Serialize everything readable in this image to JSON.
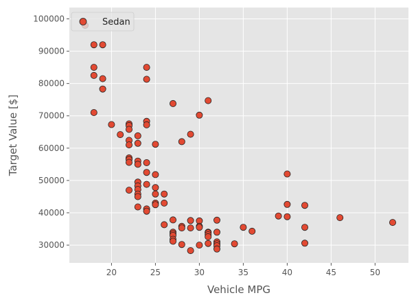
{
  "chart_data": {
    "type": "scatter",
    "xlabel": "Vehicle MPG",
    "ylabel": "Target Value [$]",
    "xlim": [
      15.2,
      53.8
    ],
    "ylim": [
      24500,
      103500
    ],
    "xticks": [
      20,
      25,
      30,
      35,
      40,
      45,
      50
    ],
    "yticks": [
      30000,
      40000,
      50000,
      60000,
      70000,
      80000,
      90000,
      100000
    ],
    "grid": true,
    "legend": {
      "placement": "top-left"
    },
    "colors": {
      "background": "#E5E5E5",
      "grid": "#FFFFFF",
      "marker_fill": "#E24A33",
      "marker_edge": "#222222",
      "text": "#555555"
    },
    "series": [
      {
        "name": "Sedan",
        "points": [
          [
            17,
            98000
          ],
          [
            18,
            92000
          ],
          [
            19,
            92000
          ],
          [
            18,
            85000
          ],
          [
            18,
            82500
          ],
          [
            19,
            81500
          ],
          [
            19,
            78300
          ],
          [
            18,
            71000
          ],
          [
            20,
            67300
          ],
          [
            21,
            64200
          ],
          [
            22,
            67500
          ],
          [
            22,
            67000
          ],
          [
            22,
            65800
          ],
          [
            22,
            62400
          ],
          [
            22,
            61000
          ],
          [
            22,
            57000
          ],
          [
            22,
            56500
          ],
          [
            22,
            55600
          ],
          [
            22,
            47000
          ],
          [
            23,
            63800
          ],
          [
            23,
            61500
          ],
          [
            23,
            56000
          ],
          [
            23,
            55000
          ],
          [
            23,
            49500
          ],
          [
            23,
            48300
          ],
          [
            23,
            47200
          ],
          [
            23,
            45800
          ],
          [
            23,
            45000
          ],
          [
            23,
            41800
          ],
          [
            24,
            85000
          ],
          [
            24,
            81300
          ],
          [
            24,
            68300
          ],
          [
            24,
            67200
          ],
          [
            24,
            55500
          ],
          [
            24,
            52500
          ],
          [
            24,
            48800
          ],
          [
            24,
            41200
          ],
          [
            24,
            40500
          ],
          [
            25,
            61200
          ],
          [
            25,
            51800
          ],
          [
            25,
            47800
          ],
          [
            25,
            45800
          ],
          [
            25,
            43000
          ],
          [
            25,
            42500
          ],
          [
            26,
            45800
          ],
          [
            26,
            43000
          ],
          [
            26,
            36300
          ],
          [
            27,
            73800
          ],
          [
            27,
            37800
          ],
          [
            27,
            34000
          ],
          [
            27,
            33500
          ],
          [
            27,
            33000
          ],
          [
            27,
            31800
          ],
          [
            27,
            31200
          ],
          [
            28,
            62000
          ],
          [
            28,
            35800
          ],
          [
            28,
            35300
          ],
          [
            28,
            30200
          ],
          [
            29,
            64300
          ],
          [
            29,
            37600
          ],
          [
            29,
            35300
          ],
          [
            29,
            28300
          ],
          [
            30,
            70200
          ],
          [
            30,
            37500
          ],
          [
            30,
            35800
          ],
          [
            30,
            35500
          ],
          [
            30,
            30000
          ],
          [
            31,
            74700
          ],
          [
            31,
            34000
          ],
          [
            31,
            33800
          ],
          [
            31,
            33200
          ],
          [
            31,
            32600
          ],
          [
            31,
            30500
          ],
          [
            32,
            37700
          ],
          [
            32,
            34000
          ],
          [
            32,
            31000
          ],
          [
            32,
            30400
          ],
          [
            32,
            29800
          ],
          [
            32,
            28800
          ],
          [
            34,
            30400
          ],
          [
            35,
            35500
          ],
          [
            36,
            34300
          ],
          [
            39,
            39000
          ],
          [
            40,
            52000
          ],
          [
            40,
            42600
          ],
          [
            40,
            38800
          ],
          [
            42,
            42300
          ],
          [
            42,
            35500
          ],
          [
            42,
            30600
          ],
          [
            46,
            38500
          ],
          [
            52,
            37000
          ]
        ]
      }
    ]
  }
}
